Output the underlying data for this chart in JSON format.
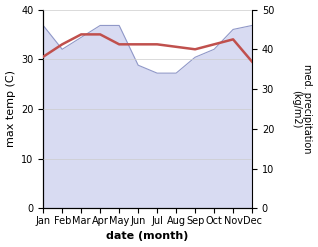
{
  "months": [
    "Jan",
    "Feb",
    "Mar",
    "Apr",
    "May",
    "Jun",
    "Jul",
    "Aug",
    "Sep",
    "Oct",
    "Nov",
    "Dec"
  ],
  "month_indices": [
    0,
    1,
    2,
    3,
    4,
    5,
    6,
    7,
    8,
    9,
    10,
    11
  ],
  "precipitation": [
    46,
    40,
    43,
    46,
    46,
    36,
    34,
    34,
    38,
    40,
    45,
    46
  ],
  "temperature": [
    30.5,
    33.0,
    35.0,
    35.0,
    33.0,
    33.0,
    33.0,
    32.5,
    32.0,
    33.0,
    34.0,
    29.5
  ],
  "precip_fill_color": "#b8bfe8",
  "precip_line_color": "#9098c8",
  "temp_color": "#c0504d",
  "ylim_left": [
    0,
    40
  ],
  "ylim_right": [
    0,
    50
  ],
  "yticks_left": [
    0,
    10,
    20,
    30,
    40
  ],
  "yticks_right": [
    0,
    10,
    20,
    30,
    40,
    50
  ],
  "xlabel": "date (month)",
  "ylabel_left": "max temp (C)",
  "ylabel_right": "med. precipitation\n(kg/m2)",
  "temp_linewidth": 1.8,
  "precip_alpha": 0.55
}
